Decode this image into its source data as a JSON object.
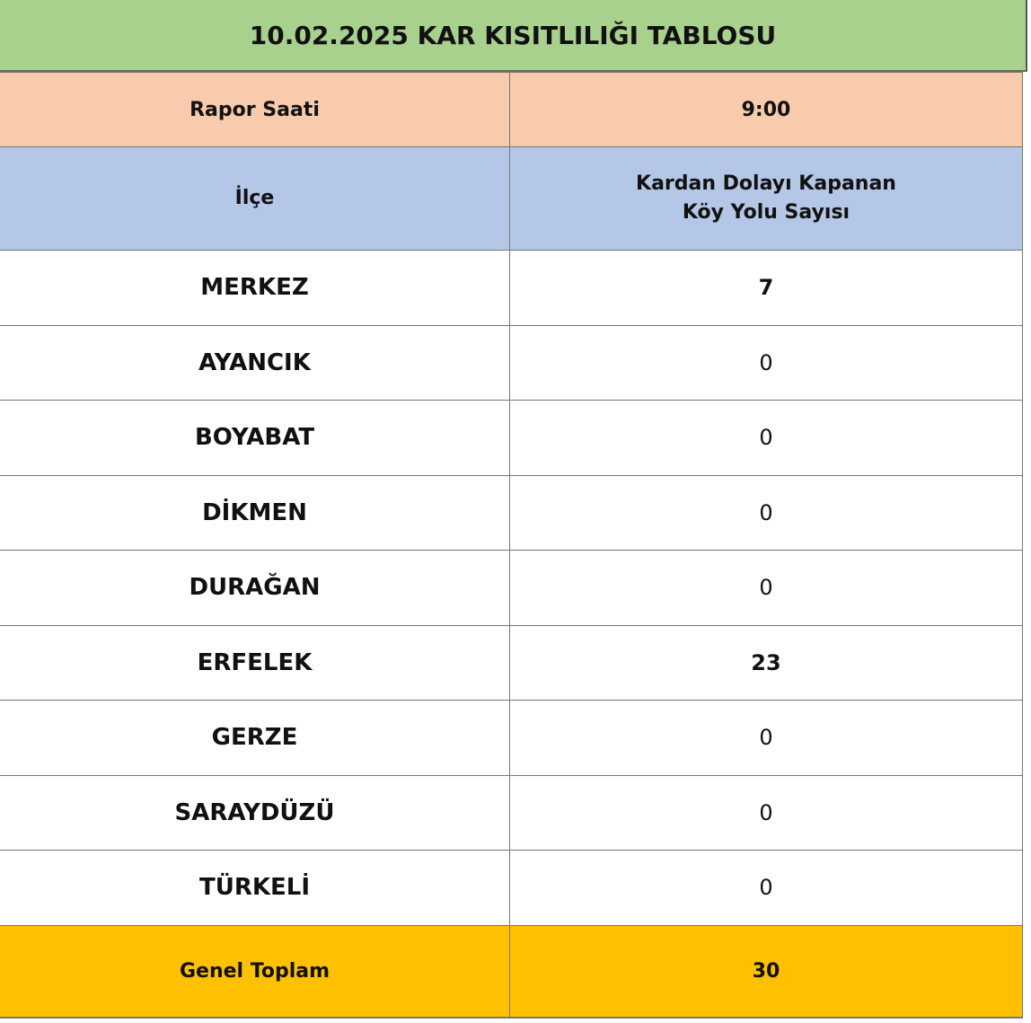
{
  "title": "10.02.2025 KAR KISITLILIĞI TABLOSU",
  "report_time": {
    "label": "Rapor Saati",
    "value": "9:00"
  },
  "header": {
    "district": "İlçe",
    "count_line1": "Kardan Dolayı Kapanan",
    "count_line2": "Köy Yolu Sayısı"
  },
  "rows": [
    {
      "district": "MERKEZ",
      "count": "7"
    },
    {
      "district": "AYANCIK",
      "count": "0"
    },
    {
      "district": "BOYABAT",
      "count": "0"
    },
    {
      "district": "DİKMEN",
      "count": "0"
    },
    {
      "district": "DURAĞAN",
      "count": "0"
    },
    {
      "district": "ERFELEK",
      "count": "23"
    },
    {
      "district": "GERZE",
      "count": "0"
    },
    {
      "district": "SARAYDÜZÜ",
      "count": "0"
    },
    {
      "district": "TÜRKELİ",
      "count": "0"
    }
  ],
  "total": {
    "label": "Genel Toplam",
    "value": "30"
  },
  "colors": {
    "title_bg": "#a9d18e",
    "report_bg": "#f8cbad",
    "header_bg": "#b4c7e7",
    "total_bg": "#ffc000"
  }
}
